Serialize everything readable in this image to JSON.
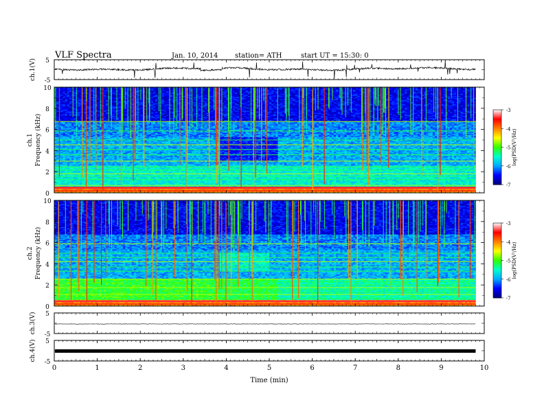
{
  "header": {
    "title": "VLF  Spectra",
    "date": "Jan. 10, 2014",
    "station": "station= ATH",
    "start_ut": "start  UT =   15:30: 0"
  },
  "chart_data": [
    {
      "type": "line",
      "name": "ch1-waveform",
      "ylabel": "ch.1(V)",
      "ylim": [
        -5,
        5
      ],
      "yticks": [
        "5",
        "-5"
      ],
      "xlim": [
        0,
        10
      ]
    },
    {
      "type": "heatmap",
      "name": "ch1-spectrogram",
      "ylabel": "ch.1\nFrequency  (kHz)",
      "ylim": [
        0,
        10
      ],
      "yticks": [
        "0",
        "2",
        "4",
        "6",
        "8",
        "10"
      ],
      "xlim": [
        0,
        10
      ],
      "data_end_min": 9.8,
      "colorbar": {
        "label": "log(PSD(V²/Hz)",
        "range": [
          -7,
          -3
        ],
        "ticks": [
          "-3",
          "-4",
          "-5",
          "-6",
          "-7"
        ]
      }
    },
    {
      "type": "heatmap",
      "name": "ch2-spectrogram",
      "ylabel": "ch.2\nFrequency  (kHz)",
      "ylim": [
        0,
        10
      ],
      "yticks": [
        "0",
        "2",
        "4",
        "6",
        "8",
        "10"
      ],
      "xlim": [
        0,
        10
      ],
      "data_end_min": 9.8,
      "colorbar": {
        "label": "log(PSD(V²/Hz)",
        "range": [
          -7,
          -3
        ],
        "ticks": [
          "-3",
          "-4",
          "-5",
          "-6",
          "-7"
        ]
      }
    },
    {
      "type": "line",
      "name": "ch3-waveform",
      "ylabel": "ch.3(V)",
      "ylim": [
        -5,
        5
      ],
      "yticks": [
        "5",
        "-5"
      ],
      "xlim": [
        0,
        10
      ]
    },
    {
      "type": "line",
      "name": "ch4-waveform",
      "ylabel": "ch.4(V)",
      "ylim": [
        -5,
        5
      ],
      "yticks": [
        "5",
        "-5"
      ],
      "xlim": [
        0,
        10
      ]
    }
  ],
  "x_axis": {
    "label": "Time  (min)",
    "ticks": [
      "0",
      "1",
      "2",
      "3",
      "4",
      "5",
      "6",
      "7",
      "8",
      "9",
      "10"
    ]
  },
  "colors": {
    "colormap": [
      "#000080",
      "#0000ff",
      "#00aaff",
      "#00ffcc",
      "#33ff00",
      "#ffff00",
      "#ff7f00",
      "#ff0000",
      "#ffffff"
    ]
  }
}
